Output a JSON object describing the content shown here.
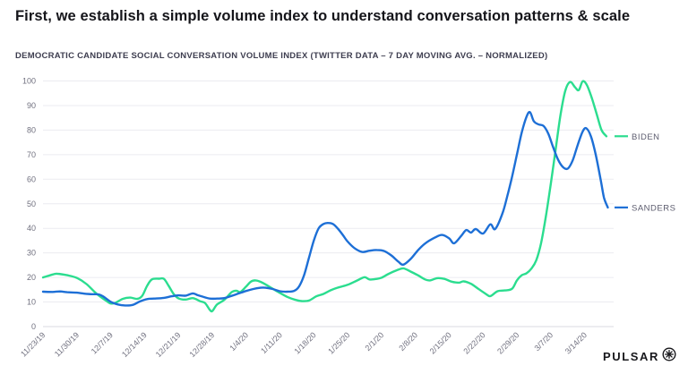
{
  "slide": {
    "title": "First, we establish a simple volume index to understand conversation patterns & scale",
    "subtitle": "DEMOCRATIC CANDIDATE SOCIAL CONVERSATION VOLUME INDEX (TWITTER DATA – 7 DAY MOVING AVG. – NORMALIZED)",
    "logo_text": "PULSAR",
    "logo_icon": "circled-asterisk-icon"
  },
  "colors": {
    "background": "#ffffff",
    "title_text": "#15151a",
    "subtitle_text": "#3d3d4f",
    "axis_label": "#70707f",
    "gridline": "#ebebf0",
    "baseline": "#d9d9e0",
    "legend_text": "#5c5c6e",
    "biden_line": "#2bdd8f",
    "sanders_line": "#1d6fd6"
  },
  "chart_data": {
    "type": "line",
    "title": "DEMOCRATIC CANDIDATE SOCIAL CONVERSATION VOLUME INDEX (TWITTER DATA – 7 DAY MOVING AVG. – NORMALIZED)",
    "xlabel": "",
    "ylabel": "",
    "grid": "horizontal",
    "legend_position": "right of line ends",
    "y_axis": {
      "min": 0,
      "max": 100,
      "tick_step": 10,
      "tick_labels": [
        "0",
        "10",
        "20",
        "30",
        "40",
        "50",
        "60",
        "70",
        "80",
        "90",
        "100"
      ]
    },
    "x_axis": {
      "unit": "days since 11/23/19",
      "domain_days": [
        0,
        118
      ],
      "tick_days": [
        0,
        7,
        14,
        21,
        28,
        35,
        42,
        49,
        56,
        63,
        70,
        77,
        84,
        91,
        98,
        105,
        112
      ],
      "tick_labels": [
        "11/23/19",
        "11/30/19",
        "12/7/19",
        "12/14/19",
        "12/21/19",
        "12/28/19",
        "1/4/20",
        "1/11/20",
        "1/18/20",
        "1/25/20",
        "2/1/20",
        "2/8/20",
        "2/15/20",
        "2/22/20",
        "2/29/20",
        "3/7/20",
        "3/14/20"
      ]
    },
    "series": [
      {
        "name": "BIDEN",
        "color": "#2bdd8f",
        "points": [
          [
            0,
            20
          ],
          [
            2,
            21.2
          ],
          [
            3,
            21.5
          ],
          [
            5,
            20.9
          ],
          [
            7,
            19.8
          ],
          [
            9,
            17.3
          ],
          [
            11,
            13.5
          ],
          [
            13,
            10.6
          ],
          [
            14,
            9.4
          ],
          [
            15,
            9.7
          ],
          [
            16.5,
            11.3
          ],
          [
            18,
            11.8
          ],
          [
            19.5,
            11.3
          ],
          [
            20.5,
            12.5
          ],
          [
            21.5,
            16.5
          ],
          [
            22.5,
            19.2
          ],
          [
            24,
            19.5
          ],
          [
            25,
            19.4
          ],
          [
            26,
            16.5
          ],
          [
            27,
            13.3
          ],
          [
            28,
            11.5
          ],
          [
            29.5,
            11
          ],
          [
            31,
            11.6
          ],
          [
            32.5,
            10.3
          ],
          [
            33.5,
            9.6
          ],
          [
            34.5,
            6.8
          ],
          [
            35,
            6.3
          ],
          [
            36,
            9
          ],
          [
            37.5,
            10.9
          ],
          [
            39,
            14
          ],
          [
            40,
            14.6
          ],
          [
            40.8,
            14.1
          ],
          [
            42,
            16.3
          ],
          [
            43,
            18.3
          ],
          [
            44,
            18.8
          ],
          [
            45,
            18.2
          ],
          [
            46,
            17.2
          ],
          [
            47.5,
            15.4
          ],
          [
            49,
            13.7
          ],
          [
            50.5,
            12.1
          ],
          [
            52,
            11
          ],
          [
            53.5,
            10.4
          ],
          [
            55,
            10.6
          ],
          [
            56.5,
            12.3
          ],
          [
            58,
            13.3
          ],
          [
            59.5,
            14.8
          ],
          [
            61,
            15.9
          ],
          [
            63,
            17
          ],
          [
            65,
            18.8
          ],
          [
            66.5,
            20.1
          ],
          [
            67.5,
            19.2
          ],
          [
            69,
            19.4
          ],
          [
            70,
            19.9
          ],
          [
            71.5,
            21.5
          ],
          [
            73,
            22.8
          ],
          [
            74.5,
            23.7
          ],
          [
            76,
            22.4
          ],
          [
            77.5,
            20.9
          ],
          [
            79,
            19.2
          ],
          [
            80,
            18.8
          ],
          [
            81.5,
            19.7
          ],
          [
            83,
            19.4
          ],
          [
            84.5,
            18.3
          ],
          [
            86,
            17.9
          ],
          [
            87,
            18.4
          ],
          [
            88.5,
            17.4
          ],
          [
            90,
            15.4
          ],
          [
            91.5,
            13.4
          ],
          [
            92.5,
            12.4
          ],
          [
            94,
            14.4
          ],
          [
            95.5,
            14.7
          ],
          [
            97,
            15.4
          ],
          [
            98,
            18.8
          ],
          [
            99,
            20.9
          ],
          [
            100,
            21.7
          ],
          [
            101,
            23.6
          ],
          [
            102,
            27
          ],
          [
            103,
            34
          ],
          [
            104,
            45
          ],
          [
            105,
            58
          ],
          [
            106,
            72
          ],
          [
            107,
            86
          ],
          [
            108,
            96
          ],
          [
            109,
            99.6
          ],
          [
            110,
            97.5
          ],
          [
            110.8,
            96.3
          ],
          [
            111.6,
            99.9
          ],
          [
            112.5,
            98.2
          ],
          [
            113.5,
            93
          ],
          [
            114.5,
            86.5
          ],
          [
            115.5,
            80
          ],
          [
            116.5,
            77.5
          ]
        ]
      },
      {
        "name": "SANDERS",
        "color": "#1d6fd6",
        "points": [
          [
            0,
            14.2
          ],
          [
            2,
            14.1
          ],
          [
            3.5,
            14.3
          ],
          [
            5,
            14
          ],
          [
            7,
            13.8
          ],
          [
            8.5,
            13.4
          ],
          [
            10,
            13.2
          ],
          [
            11.5,
            13.1
          ],
          [
            12.5,
            12.2
          ],
          [
            14,
            10.1
          ],
          [
            15.5,
            9
          ],
          [
            17,
            8.6
          ],
          [
            18.5,
            8.8
          ],
          [
            20,
            10.2
          ],
          [
            21.5,
            11.2
          ],
          [
            23,
            11.4
          ],
          [
            25,
            11.7
          ],
          [
            26.5,
            12.3
          ],
          [
            28,
            12.7
          ],
          [
            29.5,
            12.6
          ],
          [
            31,
            13.5
          ],
          [
            32,
            12.8
          ],
          [
            33,
            12.2
          ],
          [
            34.5,
            11.4
          ],
          [
            36,
            11.4
          ],
          [
            37.5,
            11.6
          ],
          [
            39,
            12.5
          ],
          [
            40.5,
            13.5
          ],
          [
            42,
            14.5
          ],
          [
            43.5,
            15.3
          ],
          [
            45,
            15.8
          ],
          [
            46,
            15.8
          ],
          [
            47.5,
            15.3
          ],
          [
            49,
            14.4
          ],
          [
            50.5,
            14.2
          ],
          [
            52,
            14.6
          ],
          [
            53,
            16.5
          ],
          [
            54,
            21
          ],
          [
            55,
            28
          ],
          [
            56,
            35
          ],
          [
            57,
            40
          ],
          [
            58,
            41.8
          ],
          [
            59,
            42.2
          ],
          [
            60,
            41.7
          ],
          [
            61,
            39.8
          ],
          [
            62,
            37.3
          ],
          [
            63,
            34.6
          ],
          [
            64.5,
            31.8
          ],
          [
            66,
            30.4
          ],
          [
            67.5,
            30.9
          ],
          [
            69,
            31.2
          ],
          [
            70.5,
            30.8
          ],
          [
            72,
            29
          ],
          [
            73.5,
            26.4
          ],
          [
            74.5,
            25.2
          ],
          [
            76,
            27.5
          ],
          [
            77.5,
            31
          ],
          [
            79,
            33.8
          ],
          [
            81,
            36.2
          ],
          [
            82.5,
            37.3
          ],
          [
            84,
            35.9
          ],
          [
            85,
            33.9
          ],
          [
            86.5,
            37
          ],
          [
            87.5,
            39.3
          ],
          [
            88.5,
            38.3
          ],
          [
            89.5,
            39.7
          ],
          [
            91,
            37.9
          ],
          [
            92.5,
            41.6
          ],
          [
            93.5,
            39.7
          ],
          [
            95,
            46
          ],
          [
            96,
            53
          ],
          [
            97,
            61
          ],
          [
            98,
            70
          ],
          [
            99,
            79
          ],
          [
            100,
            85.5
          ],
          [
            100.7,
            87.3
          ],
          [
            101.5,
            83.6
          ],
          [
            102.5,
            82.3
          ],
          [
            103.5,
            81.7
          ],
          [
            104.5,
            78.5
          ],
          [
            105.5,
            73
          ],
          [
            106.5,
            68
          ],
          [
            107.5,
            65
          ],
          [
            108.5,
            64.3
          ],
          [
            109.5,
            67.5
          ],
          [
            110.5,
            73.5
          ],
          [
            111.5,
            79
          ],
          [
            112.3,
            80.8
          ],
          [
            113.3,
            77.5
          ],
          [
            114.3,
            70
          ],
          [
            115.3,
            60
          ],
          [
            116,
            52.5
          ],
          [
            116.8,
            48.5
          ]
        ]
      }
    ]
  }
}
